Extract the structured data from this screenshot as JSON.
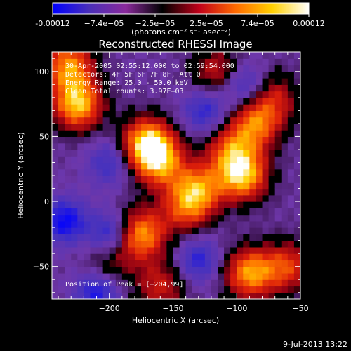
{
  "colorbar": {
    "tick_labels": [
      "-0.00012",
      "−7.4e−05",
      "−2.5e−05",
      "2.5e−05",
      "7.4e−05",
      "0.00012"
    ],
    "unit_label": "(photons cm⁻² s⁻¹ asec⁻²)",
    "colors": [
      "#0000ff",
      "#4a2fb8",
      "#8a2a9c",
      "#000000",
      "#c0001a",
      "#ff6a00",
      "#ffd000",
      "#ffffff"
    ]
  },
  "chart_data": {
    "type": "heatmap",
    "title": "Reconstructed RHESSI Image",
    "xlabel": "Heliocentric X (arcsec)",
    "ylabel": "Heliocentric Y (arcsec)",
    "xlim": [
      -245,
      -50
    ],
    "ylim": [
      -75,
      115
    ],
    "x_ticks": [
      -200,
      -150,
      -100,
      -50
    ],
    "y_ticks": [
      -50,
      0,
      50,
      100
    ],
    "x_tick_labels": [
      "−200",
      "−150",
      "−100",
      "−50"
    ],
    "y_tick_labels": [
      "−50",
      "0",
      "50",
      "100"
    ],
    "annotations": [
      "30-Apr-2005 02:55:12.000 to 02:59:54.000",
      "Detectors: 4F 5F 6F 7F 8F, Att 0",
      "Energy Range: 25.0 - 50.0 keV",
      "Clean     Total counts: 3.97E+03"
    ],
    "peak_label": "Position of Peak = [−204,99]",
    "peak": [
      -204,
      99
    ],
    "bright_sources": [
      {
        "x": -225,
        "y": 75,
        "level": 0.95
      },
      {
        "x": -232,
        "y": 105,
        "level": 0.8
      },
      {
        "x": -170,
        "y": 45,
        "level": 1.0
      },
      {
        "x": -160,
        "y": 30,
        "level": 0.7
      },
      {
        "x": -130,
        "y": 10,
        "level": 0.7
      },
      {
        "x": -95,
        "y": 20,
        "level": 0.9
      },
      {
        "x": -105,
        "y": 40,
        "level": 0.6
      },
      {
        "x": -85,
        "y": 60,
        "level": 0.7
      },
      {
        "x": -115,
        "y": 100,
        "level": 0.5
      },
      {
        "x": -175,
        "y": -25,
        "level": 0.85
      },
      {
        "x": -90,
        "y": -55,
        "level": 0.85
      },
      {
        "x": -60,
        "y": -50,
        "level": 0.6
      },
      {
        "x": -160,
        "y": -65,
        "level": 0.5
      },
      {
        "x": -200,
        "y": -45,
        "level": 0.35
      },
      {
        "x": -140,
        "y": -5,
        "level": 0.55
      },
      {
        "x": -70,
        "y": 80,
        "level": 0.45
      }
    ],
    "dark_sources": [
      {
        "x": -235,
        "y": -15,
        "level": 0.8
      },
      {
        "x": -200,
        "y": -25,
        "level": 0.7
      },
      {
        "x": -130,
        "y": -45,
        "level": 0.6
      },
      {
        "x": -95,
        "y": 90,
        "level": 0.6
      },
      {
        "x": -200,
        "y": 30,
        "level": 0.5
      },
      {
        "x": -125,
        "y": 70,
        "level": 0.6
      },
      {
        "x": -210,
        "y": -70,
        "level": 0.7
      }
    ]
  },
  "footer": {
    "date": "9-Jul-2013 13:22"
  }
}
